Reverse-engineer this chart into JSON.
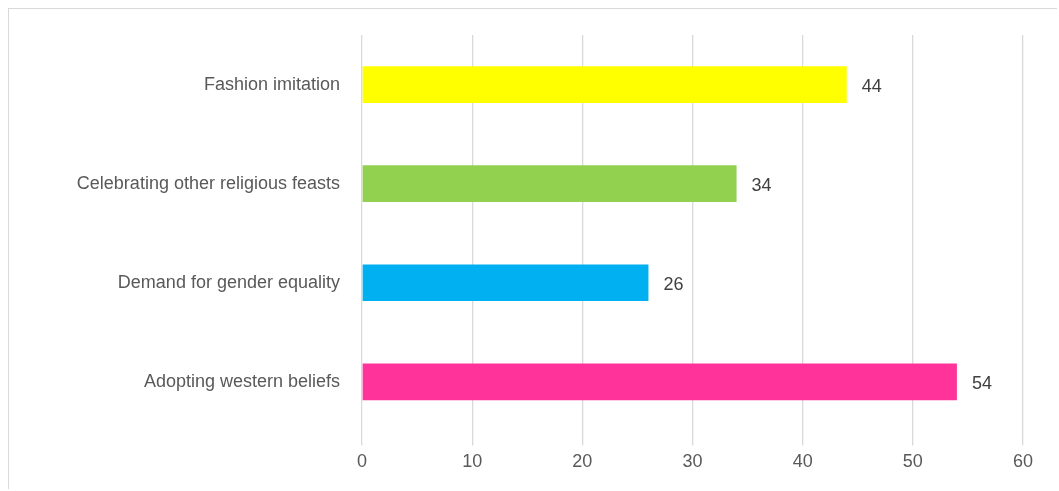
{
  "chart_data": {
    "type": "bar",
    "orientation": "horizontal",
    "categories": [
      "Fashion imitation",
      "Celebrating other religious feasts",
      "Demand for gender equality",
      "Adopting western beliefs"
    ],
    "values": [
      44,
      34,
      26,
      54
    ],
    "colors": [
      "#ffff00",
      "#92d050",
      "#00b0f0",
      "#ff3399"
    ],
    "xlim": [
      0,
      60
    ],
    "xticks": [
      0,
      10,
      20,
      30,
      40,
      50,
      60
    ],
    "grid": "x",
    "data_labels": true,
    "legend": false
  }
}
